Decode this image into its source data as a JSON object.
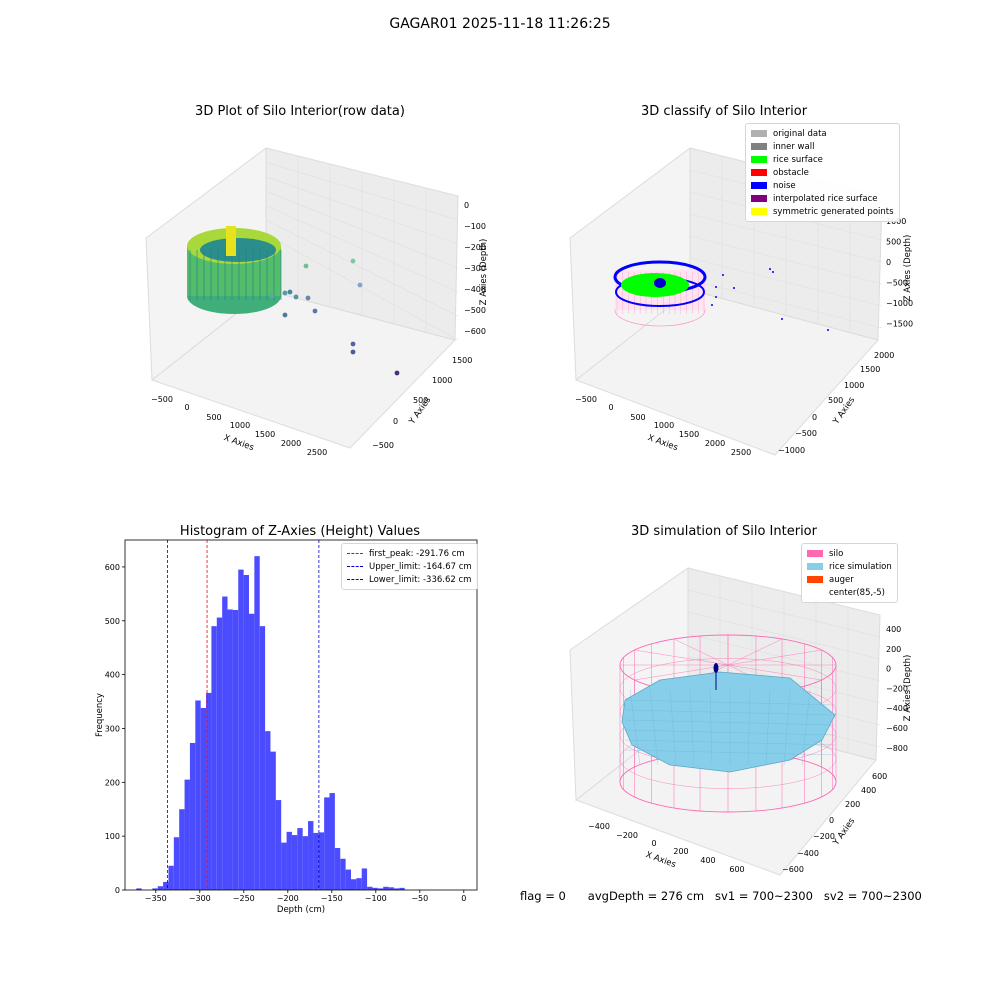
{
  "page": {
    "suptitle": "GAGAR01 2025-11-18 11:26:25",
    "status": {
      "flag": "flag = 0",
      "avg_depth": "avgDepth = 276 cm",
      "sv1": "sv1 = 700~2300",
      "sv2": "sv2 = 700~2300"
    }
  },
  "colors": {
    "hist_bar": "#4c4cff",
    "peak_line": "#ff0000",
    "limit_line": "#0000cc",
    "silo": "#ff69b4",
    "rice": "#87ceeb",
    "auger": "#ff4500"
  },
  "chart_data": [
    {
      "type": "scatter3d",
      "title": "3D Plot of Silo Interior(row data)",
      "xlabel": "X Axies",
      "ylabel": "Y Axies",
      "zlabel": "Z Axies (Depth)",
      "xticks": [
        "−500",
        "0",
        "500",
        "1000",
        "1500",
        "2000",
        "2500"
      ],
      "yticks": [
        "−500",
        "0",
        "500",
        "1000",
        "1500"
      ],
      "zticks": [
        "0",
        "−100",
        "−200",
        "−300",
        "−400",
        "−500",
        "−600"
      ],
      "colormap": "viridis"
    },
    {
      "type": "scatter3d",
      "title": "3D classify of Silo Interior",
      "xlabel": "X Axies",
      "ylabel": "Y Axies",
      "zlabel": "Z Axies (Depth)",
      "xticks": [
        "−500",
        "0",
        "500",
        "1000",
        "1500",
        "2000",
        "2500"
      ],
      "yticks": [
        "−1000",
        "−500",
        "0",
        "500",
        "1000",
        "1500",
        "2000"
      ],
      "zticks": [
        "1000",
        "500",
        "0",
        "−500",
        "−1000",
        "−1500"
      ],
      "legend": [
        {
          "label": "original data",
          "color": "#b0b0b0"
        },
        {
          "label": "inner wall",
          "color": "#808080"
        },
        {
          "label": "rice surface",
          "color": "#00ff00"
        },
        {
          "label": "obstacle",
          "color": "#ff0000"
        },
        {
          "label": "noise",
          "color": "#0000ff"
        },
        {
          "label": "interpolated rice surface",
          "color": "#800080"
        },
        {
          "label": "symmetric generated points",
          "color": "#ffff00"
        }
      ]
    },
    {
      "type": "bar",
      "title": "Histogram of Z-Axies (Height) Values",
      "xlabel": "Depth (cm)",
      "ylabel": "Frequency",
      "xlim": [
        -385,
        15
      ],
      "ylim": [
        0,
        650
      ],
      "xticks": [
        -350,
        -300,
        -250,
        -200,
        -150,
        -100,
        -50,
        0
      ],
      "yticks": [
        0,
        100,
        200,
        300,
        400,
        500,
        600
      ],
      "bin_width": 6.1,
      "bins_start": -372.2,
      "values": [
        3,
        0,
        0,
        3,
        7,
        15,
        45,
        98,
        150,
        205,
        273,
        352,
        338,
        366,
        490,
        506,
        545,
        521,
        520,
        595,
        585,
        513,
        620,
        490,
        295,
        257,
        167,
        88,
        108,
        102,
        115,
        100,
        128,
        106,
        107,
        172,
        180,
        78,
        58,
        38,
        20,
        22,
        40,
        6,
        4,
        3,
        6,
        5,
        3,
        4
      ],
      "vlines": [
        {
          "label": "first_peak: -291.76 cm",
          "x": -291.76,
          "color": "#ff0000"
        },
        {
          "label": "Upper_limit: -164.67 cm",
          "x": -164.67,
          "color": "#0000cc"
        },
        {
          "label": "Lower_limit: -336.62 cm",
          "x": -336.62,
          "color": "#0000cc"
        }
      ]
    },
    {
      "type": "surface3d",
      "title": "3D simulation of Silo Interior",
      "xlabel": "X Axies",
      "ylabel": "Y Axies",
      "zlabel": "Z Axies (Depth)",
      "xticks": [
        "−400",
        "−200",
        "0",
        "200",
        "400",
        "600"
      ],
      "yticks": [
        "−600",
        "−400",
        "−200",
        "0",
        "200",
        "400",
        "600"
      ],
      "zticks": [
        "400",
        "200",
        "0",
        "−200",
        "−400",
        "−600",
        "−800"
      ],
      "legend": [
        {
          "label": "silo",
          "color": "#ff69b4"
        },
        {
          "label": "rice simulation",
          "color": "#87ceeb"
        },
        {
          "label": "auger",
          "color": "#ff4500"
        },
        {
          "label": "center(85,-5)",
          "color": ""
        }
      ]
    }
  ]
}
